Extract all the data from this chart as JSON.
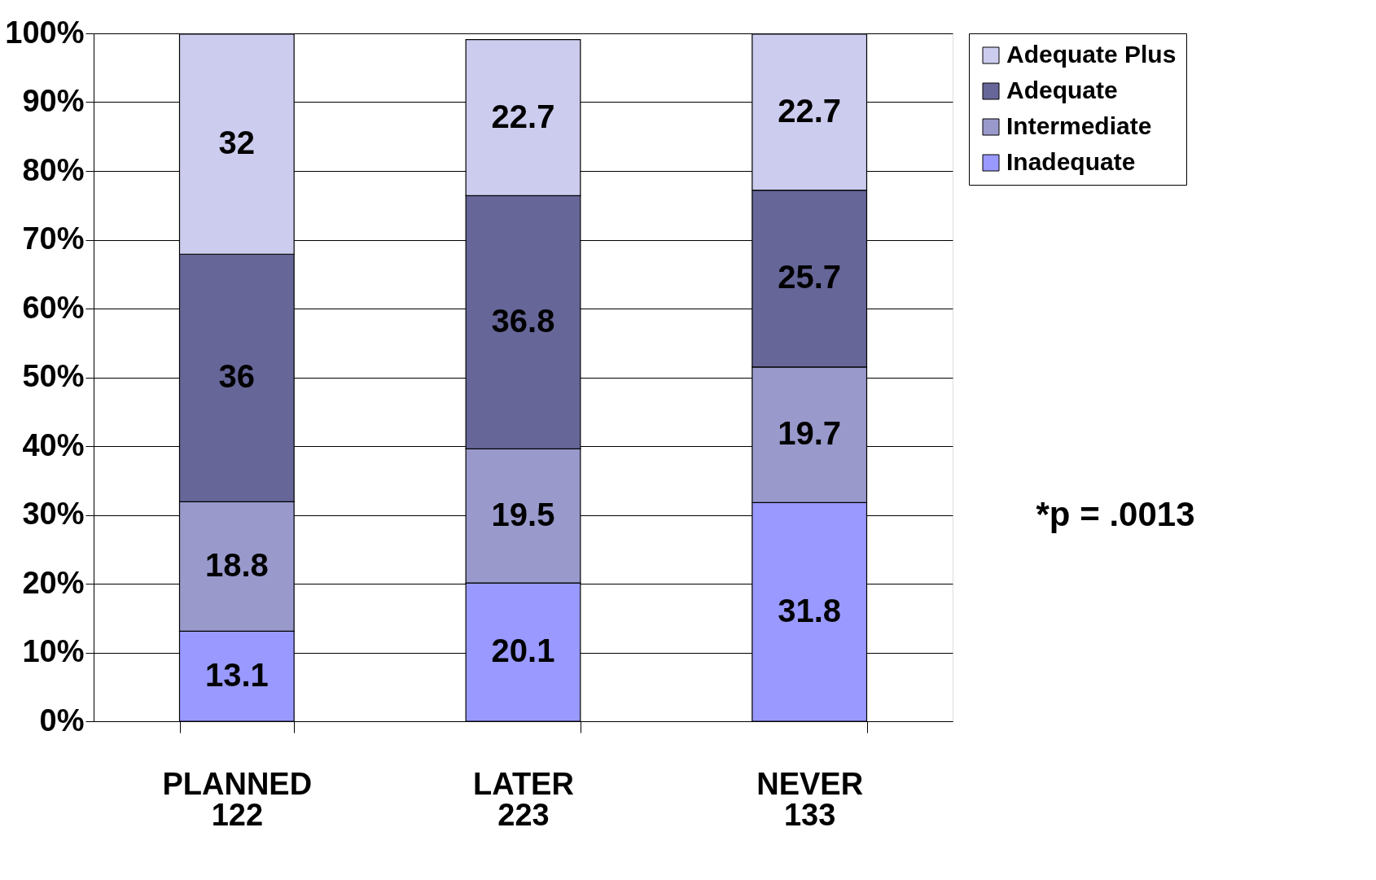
{
  "chart_data": {
    "type": "bar",
    "stacked": true,
    "categories": [
      "PLANNED\n122",
      "LATER\n223",
      "NEVER\n133"
    ],
    "series": [
      {
        "name": "Inadequate",
        "color": "#9999ff",
        "values": [
          13.1,
          20.1,
          31.8
        ]
      },
      {
        "name": "Intermediate",
        "color": "#9999cc",
        "values": [
          18.8,
          19.5,
          19.7
        ]
      },
      {
        "name": "Adequate",
        "color": "#666699",
        "values": [
          36,
          36.8,
          25.7
        ]
      },
      {
        "name": "Adequate Plus",
        "color": "#ccccee",
        "values": [
          32,
          22.7,
          22.7
        ]
      }
    ],
    "ylim": [
      0,
      100
    ],
    "yticks": [
      {
        "value": 0,
        "label": "0%"
      },
      {
        "value": 10,
        "label": "10%"
      },
      {
        "value": 20,
        "label": "20%"
      },
      {
        "value": 30,
        "label": "30%"
      },
      {
        "value": 40,
        "label": "40%"
      },
      {
        "value": 50,
        "label": "50%"
      },
      {
        "value": 60,
        "label": "60%"
      },
      {
        "value": 70,
        "label": "70%"
      },
      {
        "value": 80,
        "label": "80%"
      },
      {
        "value": 90,
        "label": "90%"
      },
      {
        "value": 100,
        "label": "100%"
      }
    ],
    "grid": "y",
    "legend": "right",
    "data_labels": true,
    "annotations": [
      "*p = .0013"
    ]
  }
}
